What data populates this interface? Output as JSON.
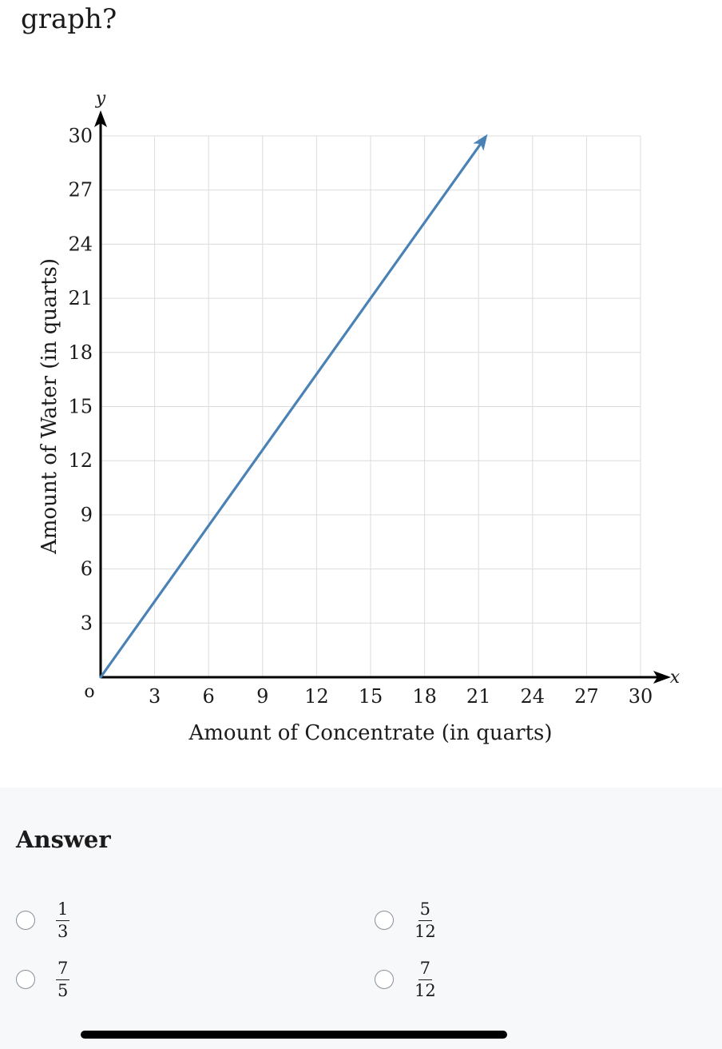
{
  "question": {
    "text_tail": "graph?"
  },
  "chart_data": {
    "type": "line",
    "title": "",
    "xlabel": "Amount of Concentrate (in quarts)",
    "ylabel": "Amount of Water (in quarts)",
    "x_axis_letter": "x",
    "y_axis_letter": "y",
    "origin_label": "o",
    "xlim": [
      0,
      30
    ],
    "ylim": [
      0,
      30
    ],
    "xticks": [
      3,
      6,
      9,
      12,
      15,
      18,
      21,
      24,
      27,
      30
    ],
    "yticks": [
      3,
      6,
      9,
      12,
      15,
      18,
      21,
      24,
      27,
      30
    ],
    "grid": true,
    "series": [
      {
        "x": [
          0,
          21.5
        ],
        "y": [
          0,
          30.1
        ],
        "color": "#4a82b6",
        "arrow_end": true
      }
    ]
  },
  "answer": {
    "heading": "Answer",
    "choices": [
      {
        "num": "1",
        "den": "3"
      },
      {
        "num": "5",
        "den": "12"
      },
      {
        "num": "7",
        "den": "5"
      },
      {
        "num": "7",
        "den": "12"
      }
    ]
  }
}
